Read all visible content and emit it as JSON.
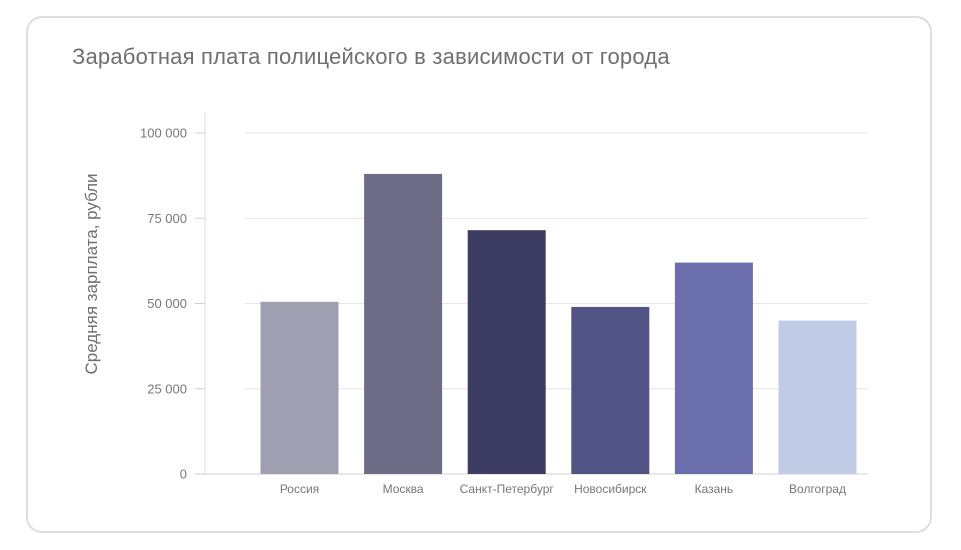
{
  "chart_data": {
    "type": "bar",
    "title": "Заработная плата полицейского в зависимости от города",
    "xlabel": "",
    "ylabel": "Средняя зарплата, рубли",
    "ylim": [
      0,
      100000
    ],
    "yticks": [
      0,
      25000,
      50000,
      75000,
      100000
    ],
    "ytick_labels": [
      "0",
      "25 000",
      "50 000",
      "75 000",
      "100 000"
    ],
    "categories": [
      "Россия",
      "Москва",
      "Санкт-Петербург",
      "Новосибирск",
      "Казань",
      "Волгоград"
    ],
    "values": [
      50500,
      88000,
      71500,
      49000,
      62000,
      45000
    ],
    "colors": [
      "#a09fb1",
      "#6e6d88",
      "#3d3c63",
      "#525486",
      "#6a6eac",
      "#c0cbe6"
    ],
    "grid": true,
    "legend": "none"
  }
}
